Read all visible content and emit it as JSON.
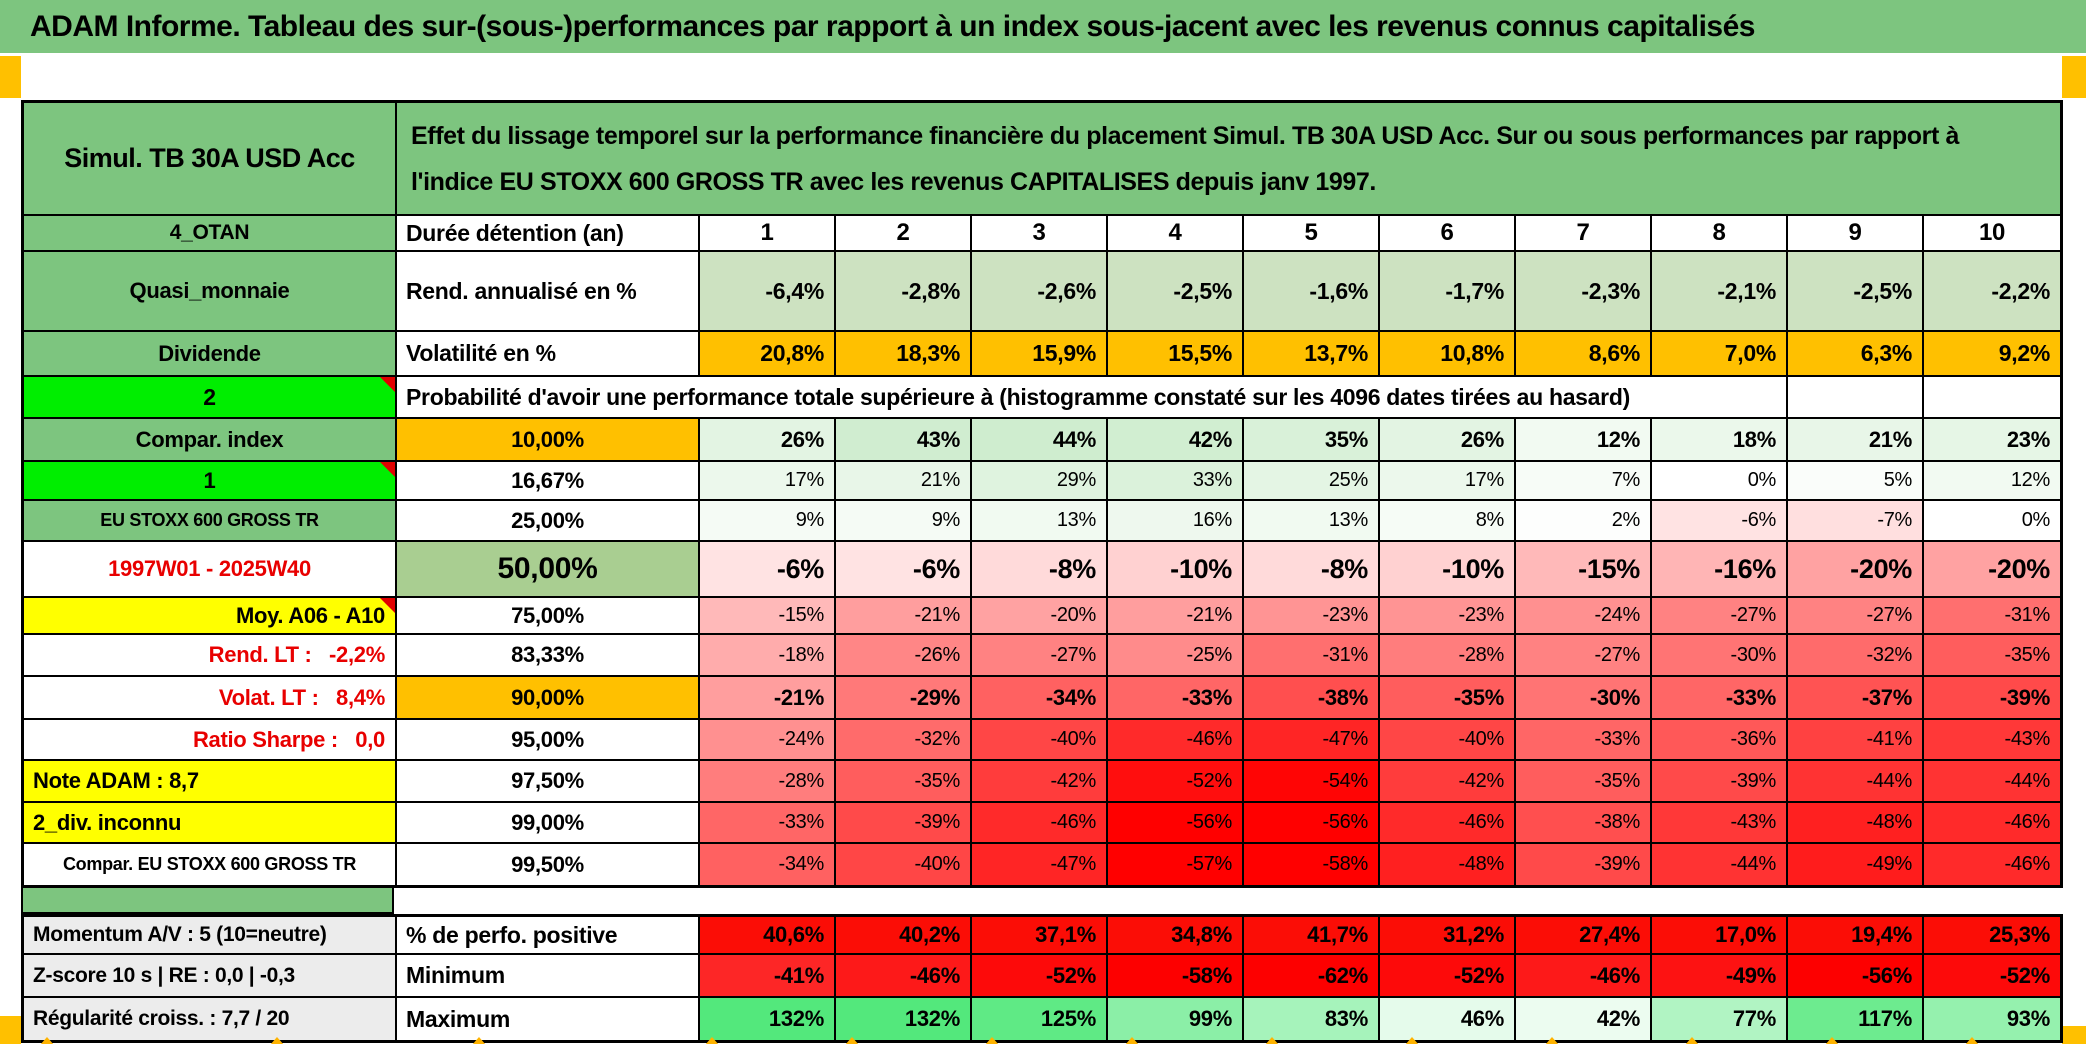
{
  "title": "ADAM Informe. Tableau des sur-(sous-)performances par rapport à un index sous-jacent avec les revenus connus capitalisés",
  "header": {
    "product": "Simul. TB 30A USD Acc",
    "description": "Effet du lissage temporel sur la performance financière du placement Simul. TB 30A USD Acc. Sur ou sous performances par rapport à l'indice EU STOXX 600 GROSS TR avec les revenus CAPITALISES depuis janv 1997."
  },
  "top_rows": [
    {
      "left": "4_OTAN",
      "label": "Durée détention (an)",
      "values": [
        "1",
        "2",
        "3",
        "4",
        "5",
        "6",
        "7",
        "8",
        "9",
        "10"
      ],
      "value_style": "duree"
    },
    {
      "left": "Quasi_monnaie",
      "label": "Rend. annualisé en %",
      "values": [
        "-6,4%",
        "-2,8%",
        "-2,6%",
        "-2,5%",
        "-1,6%",
        "-1,7%",
        "-2,3%",
        "-2,1%",
        "-2,5%",
        "-2,2%"
      ],
      "value_style": "sage"
    },
    {
      "left": "Dividende",
      "label": "Volatilité en %",
      "values": [
        "20,8%",
        "18,3%",
        "15,9%",
        "15,5%",
        "13,7%",
        "10,8%",
        "8,6%",
        "7,0%",
        "6,3%",
        "9,2%"
      ],
      "value_style": "orange"
    }
  ],
  "prob_section": {
    "corner": "2",
    "title": "Probabilité d'avoir une performance totale supérieure à (histogramme constaté sur les 4096 dates tirées au hasard)",
    "rows": [
      {
        "left": "Compar. index",
        "left_bg": "green",
        "left_align": "center",
        "threshold": "10,00%",
        "thr_bg": "orange",
        "bold": true,
        "values": [
          26,
          43,
          44,
          42,
          35,
          26,
          12,
          18,
          21,
          23
        ]
      },
      {
        "left": "1",
        "left_bg": "bright",
        "left_align": "center",
        "wedge": true,
        "threshold": "16,67%",
        "thr_bg": "white",
        "bold": false,
        "values": [
          17,
          21,
          29,
          33,
          25,
          17,
          7,
          0,
          5,
          12
        ]
      },
      {
        "left": "EU STOXX 600 GROSS TR",
        "left_bg": "green",
        "left_align": "center",
        "left_small": true,
        "threshold": "25,00%",
        "thr_bg": "white",
        "bold": false,
        "values": [
          9,
          9,
          13,
          16,
          13,
          8,
          2,
          -6,
          -7,
          0
        ]
      },
      {
        "left": "1997W01 - 2025W40",
        "left_bg": "white",
        "left_color": "red",
        "left_align": "center",
        "threshold": "50,00%",
        "thr_bg": "mid",
        "thr_big": true,
        "bold": true,
        "big": true,
        "values": [
          -6,
          -6,
          -8,
          -10,
          -8,
          -10,
          -15,
          -16,
          -20,
          -20
        ]
      },
      {
        "left": "Moy. A06 - A10",
        "left_bg": "yellow",
        "left_align": "right",
        "wedge": true,
        "threshold": "75,00%",
        "thr_bg": "white",
        "bold": false,
        "values": [
          -15,
          -21,
          -20,
          -21,
          -23,
          -23,
          -24,
          -27,
          -27,
          -31
        ]
      },
      {
        "left": "Rend. LT :   -2,2%",
        "left_bg": "white",
        "left_color": "red",
        "left_align": "right",
        "threshold": "83,33%",
        "thr_bg": "white",
        "bold": false,
        "values": [
          -18,
          -26,
          -27,
          -25,
          -31,
          -28,
          -27,
          -30,
          -32,
          -35
        ]
      },
      {
        "left": "Volat. LT :   8,4%",
        "left_bg": "white",
        "left_color": "red",
        "left_align": "right",
        "threshold": "90,00%",
        "thr_bg": "orange",
        "bold": true,
        "values": [
          -21,
          -29,
          -34,
          -33,
          -38,
          -35,
          -30,
          -33,
          -37,
          -39
        ]
      },
      {
        "left": "Ratio Sharpe :   0,0",
        "left_bg": "white",
        "left_color": "red",
        "left_align": "right",
        "threshold": "95,00%",
        "thr_bg": "white",
        "bold": false,
        "values": [
          -24,
          -32,
          -40,
          -46,
          -47,
          -40,
          -33,
          -36,
          -41,
          -43
        ]
      },
      {
        "left": "Note ADAM : 8,7",
        "left_bg": "yellow",
        "left_align": "left",
        "threshold": "97,50%",
        "thr_bg": "white",
        "bold": false,
        "values": [
          -28,
          -35,
          -42,
          -52,
          -54,
          -42,
          -35,
          -39,
          -44,
          -44
        ]
      },
      {
        "left": "2_div. inconnu",
        "left_bg": "yellow",
        "left_align": "left",
        "threshold": "99,00%",
        "thr_bg": "white",
        "bold": false,
        "values": [
          -33,
          -39,
          -46,
          -56,
          -56,
          -46,
          -38,
          -43,
          -48,
          -46
        ]
      },
      {
        "left": "Compar. EU STOXX 600 GROSS TR",
        "left_bg": "white",
        "left_align": "center",
        "left_small": true,
        "threshold": "99,50%",
        "thr_bg": "white",
        "bold": false,
        "values": [
          -34,
          -40,
          -47,
          -57,
          -58,
          -48,
          -39,
          -44,
          -49,
          -46
        ]
      }
    ]
  },
  "bottom_section": {
    "rows": [
      {
        "left": "Momentum A/V : 5 (10=neutre)",
        "label": "% de perfo. positive",
        "mode": "solid_red",
        "values": [
          "40,6%",
          "40,2%",
          "37,1%",
          "34,8%",
          "41,7%",
          "31,2%",
          "27,4%",
          "17,0%",
          "19,4%",
          "25,3%"
        ],
        "nums": [
          40.6,
          40.2,
          37.1,
          34.8,
          41.7,
          31.2,
          27.4,
          17.0,
          19.4,
          25.3
        ]
      },
      {
        "left": "Z-score 10 s | RE : 0,0 | -0,3",
        "label": "Minimum",
        "mode": "red_scale",
        "values": [
          "-41%",
          "-46%",
          "-52%",
          "-58%",
          "-62%",
          "-52%",
          "-46%",
          "-49%",
          "-56%",
          "-52%"
        ],
        "nums": [
          -41,
          -46,
          -52,
          -58,
          -62,
          -52,
          -46,
          -49,
          -56,
          -52
        ]
      },
      {
        "left": "Régularité croiss. : 7,7 / 20",
        "label": "Maximum",
        "mode": "green_scale",
        "values": [
          "132%",
          "132%",
          "125%",
          "99%",
          "83%",
          "46%",
          "42%",
          "77%",
          "117%",
          "93%"
        ],
        "nums": [
          132,
          132,
          125,
          99,
          83,
          46,
          42,
          77,
          117,
          93
        ]
      }
    ]
  },
  "colors": {
    "band_green": "#7dc57f",
    "bright_green": "#00ee00",
    "orange": "#ffc000",
    "yellow": "#ffff00",
    "sage": "#cde2c1",
    "mid_green": "#a9ce91",
    "label_gray": "#ececec",
    "solid_red": "#fb0d06",
    "wedge_red": "#e00000"
  }
}
